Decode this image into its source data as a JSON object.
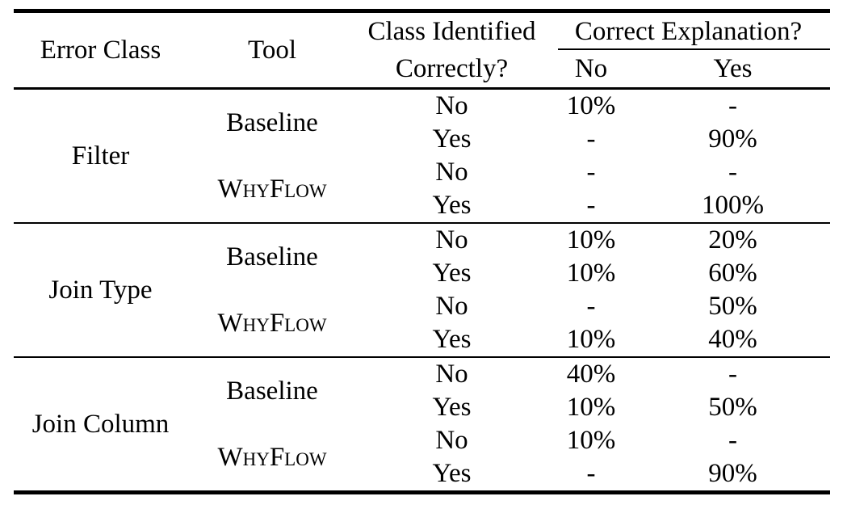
{
  "table": {
    "headers": {
      "error_class": "Error Class",
      "tool": "Tool",
      "class_identified_line1": "Class Identified",
      "class_identified_line2": "Correctly?",
      "correct_explanation": "Correct Explanation?",
      "sub_no": "No",
      "sub_yes": "Yes"
    },
    "sections": [
      {
        "error_class": "Filter",
        "tools": [
          {
            "tool": "Baseline",
            "rows": [
              {
                "identified": "No",
                "no": "10%",
                "yes": "-"
              },
              {
                "identified": "Yes",
                "no": "-",
                "yes": "90%"
              }
            ]
          },
          {
            "tool": "WhyFlow",
            "rows": [
              {
                "identified": "No",
                "no": "-",
                "yes": "-"
              },
              {
                "identified": "Yes",
                "no": "-",
                "yes": "100%"
              }
            ]
          }
        ]
      },
      {
        "error_class": "Join Type",
        "tools": [
          {
            "tool": "Baseline",
            "rows": [
              {
                "identified": "No",
                "no": "10%",
                "yes": "20%"
              },
              {
                "identified": "Yes",
                "no": "10%",
                "yes": "60%"
              }
            ]
          },
          {
            "tool": "WhyFlow",
            "rows": [
              {
                "identified": "No",
                "no": "-",
                "yes": "50%"
              },
              {
                "identified": "Yes",
                "no": "10%",
                "yes": "40%"
              }
            ]
          }
        ]
      },
      {
        "error_class": "Join Column",
        "tools": [
          {
            "tool": "Baseline",
            "rows": [
              {
                "identified": "No",
                "no": "40%",
                "yes": "-"
              },
              {
                "identified": "Yes",
                "no": "10%",
                "yes": "50%"
              }
            ]
          },
          {
            "tool": "WhyFlow",
            "rows": [
              {
                "identified": "No",
                "no": "10%",
                "yes": "-"
              },
              {
                "identified": "Yes",
                "no": "-",
                "yes": "90%"
              }
            ]
          }
        ]
      }
    ]
  }
}
